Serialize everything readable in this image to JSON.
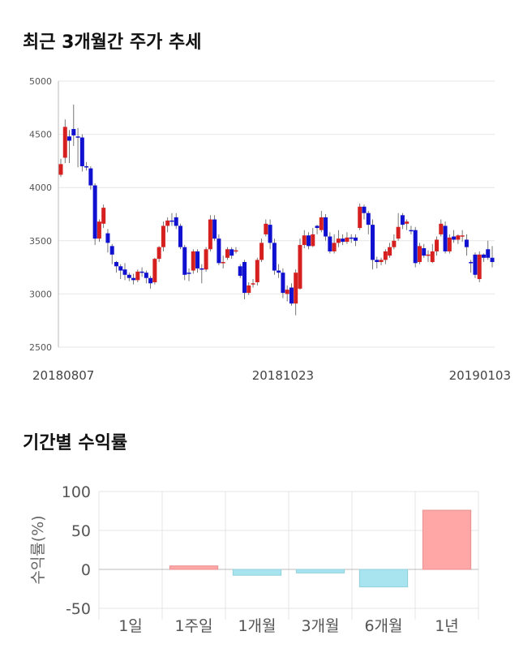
{
  "sections": {
    "price_title": "최근 3개월간 주가 추세",
    "return_title": "기간별 수익률"
  },
  "colors": {
    "up": "#d62020",
    "down": "#1010d0",
    "bar_pos": "#ffa6a6",
    "bar_neg": "#a8e4f0",
    "grid": "#e6e6e6",
    "wick": "#555555"
  },
  "chart_data": [
    {
      "type": "candlestick",
      "title": "최근 3개월간 주가 추세",
      "ylim": [
        2500,
        5000
      ],
      "yticks": [
        2500,
        3000,
        3500,
        4000,
        4500,
        5000
      ],
      "xtick_labels": [
        "20180807",
        "20181023",
        "20190103"
      ],
      "xtick_index": [
        0,
        52,
        101
      ],
      "candles": [
        [
          4120,
          4220,
          4270,
          4100
        ],
        [
          4280,
          4570,
          4640,
          4230
        ],
        [
          4480,
          4440,
          4540,
          4230
        ],
        [
          4550,
          4490,
          4780,
          4390
        ],
        [
          4480,
          4470,
          4560,
          4190
        ],
        [
          4470,
          4200,
          4500,
          4150
        ],
        [
          4200,
          4190,
          4240,
          4160
        ],
        [
          4180,
          4020,
          4200,
          3980
        ],
        [
          4020,
          3520,
          4040,
          3460
        ],
        [
          3520,
          3680,
          3700,
          3490
        ],
        [
          3660,
          3810,
          3840,
          3620
        ],
        [
          3570,
          3480,
          3610,
          3390
        ],
        [
          3450,
          3370,
          3470,
          3280
        ],
        [
          3300,
          3260,
          3310,
          3200
        ],
        [
          3260,
          3220,
          3280,
          3140
        ],
        [
          3230,
          3180,
          3290,
          3130
        ],
        [
          3180,
          3150,
          3200,
          3120
        ],
        [
          3150,
          3130,
          3190,
          3090
        ],
        [
          3130,
          3210,
          3230,
          3110
        ],
        [
          3210,
          3200,
          3250,
          3160
        ],
        [
          3200,
          3150,
          3220,
          3100
        ],
        [
          3150,
          3100,
          3170,
          3050
        ],
        [
          3110,
          3330,
          3340,
          3090
        ],
        [
          3330,
          3440,
          3450,
          3300
        ],
        [
          3440,
          3640,
          3680,
          3400
        ],
        [
          3640,
          3690,
          3720,
          3580
        ],
        [
          3690,
          3680,
          3760,
          3640
        ],
        [
          3720,
          3640,
          3760,
          3610
        ],
        [
          3640,
          3440,
          3660,
          3420
        ],
        [
          3440,
          3180,
          3460,
          3130
        ],
        [
          3200,
          3190,
          3240,
          3120
        ],
        [
          3220,
          3400,
          3420,
          3190
        ],
        [
          3400,
          3240,
          3420,
          3200
        ],
        [
          3240,
          3230,
          3280,
          3100
        ],
        [
          3230,
          3420,
          3440,
          3210
        ],
        [
          3420,
          3700,
          3740,
          3400
        ],
        [
          3700,
          3520,
          3740,
          3500
        ],
        [
          3520,
          3290,
          3560,
          3270
        ],
        [
          3290,
          3300,
          3360,
          3240
        ],
        [
          3340,
          3420,
          3440,
          3320
        ],
        [
          3420,
          3360,
          3440,
          3330
        ],
        [
          3410,
          3410,
          3440,
          3380
        ],
        [
          3260,
          3170,
          3280,
          3150
        ],
        [
          3300,
          3010,
          3320,
          2950
        ],
        [
          3010,
          3080,
          3110,
          2990
        ],
        [
          3090,
          3100,
          3140,
          3060
        ],
        [
          3110,
          3320,
          3340,
          3080
        ],
        [
          3320,
          3480,
          3520,
          3300
        ],
        [
          3560,
          3660,
          3700,
          3540
        ],
        [
          3650,
          3480,
          3700,
          3420
        ],
        [
          3480,
          3220,
          3520,
          3180
        ],
        [
          3220,
          3200,
          3280,
          3150
        ],
        [
          3200,
          3010,
          3240,
          2960
        ],
        [
          3000,
          3040,
          3080,
          2930
        ],
        [
          3060,
          2910,
          3100,
          2890
        ],
        [
          2910,
          3200,
          3230,
          2800
        ],
        [
          3050,
          3460,
          3520,
          3040
        ],
        [
          3460,
          3550,
          3600,
          3430
        ],
        [
          3550,
          3450,
          3580,
          3420
        ],
        [
          3450,
          3560,
          3620,
          3440
        ],
        [
          3640,
          3620,
          3650,
          3560
        ],
        [
          3600,
          3720,
          3780,
          3580
        ],
        [
          3720,
          3540,
          3750,
          3500
        ],
        [
          3540,
          3400,
          3580,
          3380
        ],
        [
          3400,
          3480,
          3560,
          3380
        ],
        [
          3480,
          3520,
          3600,
          3440
        ],
        [
          3520,
          3490,
          3560,
          3460
        ],
        [
          3490,
          3530,
          3580,
          3470
        ],
        [
          3530,
          3520,
          3560,
          3480
        ],
        [
          3530,
          3500,
          3560,
          3450
        ],
        [
          3620,
          3820,
          3850,
          3600
        ],
        [
          3820,
          3760,
          3840,
          3700
        ],
        [
          3760,
          3650,
          3780,
          3560
        ],
        [
          3650,
          3320,
          3700,
          3230
        ],
        [
          3320,
          3300,
          3350,
          3240
        ],
        [
          3300,
          3320,
          3340,
          3270
        ],
        [
          3320,
          3400,
          3420,
          3280
        ],
        [
          3360,
          3440,
          3480,
          3340
        ],
        [
          3440,
          3500,
          3560,
          3420
        ],
        [
          3520,
          3630,
          3760,
          3500
        ],
        [
          3740,
          3650,
          3760,
          3610
        ],
        [
          3660,
          3680,
          3700,
          3600
        ],
        [
          3600,
          3590,
          3640,
          3560
        ],
        [
          3600,
          3290,
          3630,
          3250
        ],
        [
          3300,
          3450,
          3480,
          3280
        ],
        [
          3430,
          3360,
          3470,
          3340
        ],
        [
          3370,
          3370,
          3410,
          3300
        ],
        [
          3300,
          3400,
          3470,
          3290
        ],
        [
          3400,
          3510,
          3540,
          3360
        ],
        [
          3560,
          3660,
          3700,
          3540
        ],
        [
          3640,
          3400,
          3680,
          3380
        ],
        [
          3400,
          3530,
          3560,
          3380
        ],
        [
          3540,
          3510,
          3600,
          3480
        ],
        [
          3510,
          3550,
          3560,
          3470
        ],
        [
          3550,
          3550,
          3600,
          3490
        ],
        [
          3510,
          3440,
          3560,
          3360
        ],
        [
          3300,
          3290,
          3320,
          3200
        ],
        [
          3370,
          3180,
          3390,
          3150
        ],
        [
          3140,
          3370,
          3400,
          3110
        ],
        [
          3370,
          3340,
          3380,
          3300
        ],
        [
          3420,
          3340,
          3500,
          3320
        ],
        [
          3340,
          3300,
          3450,
          3250
        ]
      ]
    },
    {
      "type": "bar",
      "title": "기간별 수익률",
      "ylabel": "수익률(%)",
      "categories": [
        "1일",
        "1주일",
        "1개월",
        "3개월",
        "6개월",
        "1년"
      ],
      "values": [
        0,
        4.5,
        -7.5,
        -4.5,
        -22.5,
        76
      ],
      "ylim": [
        -50,
        100
      ],
      "yticks": [
        -50,
        0,
        50,
        100
      ]
    }
  ]
}
